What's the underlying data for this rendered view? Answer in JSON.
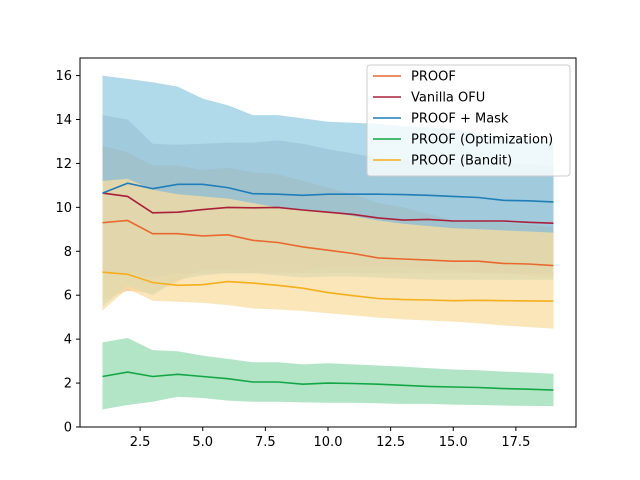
{
  "chart_data": {
    "type": "line",
    "title": "",
    "xlabel": "",
    "ylabel": "",
    "xlim": [
      0.1,
      19.9
    ],
    "ylim": [
      0,
      16.8
    ],
    "xticks": [
      2.5,
      5.0,
      7.5,
      10.0,
      12.5,
      15.0,
      17.5
    ],
    "xtick_labels": [
      "2.5",
      "5.0",
      "7.5",
      "10.0",
      "12.5",
      "15.0",
      "17.5"
    ],
    "yticks": [
      0,
      2,
      4,
      6,
      8,
      10,
      12,
      14,
      16
    ],
    "ytick_labels": [
      "0",
      "2",
      "4",
      "6",
      "8",
      "10",
      "12",
      "14",
      "16"
    ],
    "grid": false,
    "legend_position": "top-right",
    "x": [
      1,
      2,
      3,
      4,
      5,
      6,
      7,
      8,
      9,
      10,
      11,
      12,
      13,
      14,
      15,
      16,
      17,
      18,
      19
    ],
    "series": [
      {
        "name": "PROOF",
        "color": "#E8692F",
        "band_color": "#F0A05A",
        "band_opacity": 0.55,
        "values": [
          9.3,
          9.4,
          8.8,
          8.8,
          8.7,
          8.75,
          8.5,
          8.4,
          8.2,
          8.05,
          7.9,
          7.7,
          7.65,
          7.6,
          7.55,
          7.55,
          7.45,
          7.42,
          7.35
        ],
        "lower": [
          5.8,
          6.2,
          6.1,
          6.6,
          7.2,
          7.2,
          7.1,
          7.1,
          7.1,
          7.3,
          7.3,
          7.3,
          7.3,
          7.2,
          7.2,
          7.0,
          7.0,
          6.9,
          6.8
        ],
        "upper": [
          12.8,
          12.5,
          11.9,
          11.9,
          11.7,
          11.8,
          11.6,
          11.5,
          11.2,
          10.9,
          10.6,
          10.2,
          10.0,
          9.7,
          9.4,
          9.4,
          9.3,
          9.2,
          9.1
        ]
      },
      {
        "name": "Vanilla OFU",
        "color": "#A8203A",
        "band_color": "#8E8A9E",
        "band_opacity": 0.45,
        "values": [
          10.65,
          10.5,
          9.75,
          9.78,
          9.9,
          10.0,
          9.98,
          10.0,
          9.88,
          9.78,
          9.68,
          9.52,
          9.42,
          9.45,
          9.38,
          9.38,
          9.38,
          9.32,
          9.28
        ],
        "lower": [
          7.0,
          7.0,
          6.8,
          7.0,
          7.0,
          7.0,
          7.0,
          7.0,
          7.0,
          7.0,
          7.0,
          7.0,
          7.0,
          7.0,
          7.0,
          7.0,
          7.0,
          7.0,
          7.0
        ],
        "upper": [
          14.2,
          14.0,
          12.9,
          12.85,
          12.9,
          12.95,
          12.95,
          13.05,
          12.9,
          12.65,
          12.45,
          12.25,
          12.15,
          12.1,
          12.0,
          12.0,
          12.0,
          11.95,
          11.9
        ]
      },
      {
        "name": "PROOF + Mask",
        "color": "#1F7EB8",
        "band_color": "#8FCAE0",
        "band_opacity": 0.7,
        "values": [
          10.65,
          11.1,
          10.85,
          11.05,
          11.05,
          10.9,
          10.62,
          10.6,
          10.55,
          10.6,
          10.6,
          10.6,
          10.58,
          10.55,
          10.5,
          10.45,
          10.32,
          10.3,
          10.25
        ],
        "lower": [
          5.5,
          6.4,
          6.0,
          6.7,
          6.9,
          7.0,
          7.0,
          6.9,
          6.8,
          6.85,
          6.85,
          6.8,
          6.75,
          6.7,
          6.7,
          6.7,
          6.7,
          6.7,
          6.7
        ],
        "upper": [
          16.0,
          15.85,
          15.7,
          15.5,
          14.95,
          14.65,
          14.2,
          14.2,
          14.05,
          13.9,
          13.85,
          13.8,
          13.7,
          13.65,
          13.55,
          13.35,
          13.2,
          13.1,
          12.95
        ]
      },
      {
        "name": "PROOF (Optimization)",
        "color": "#14A646",
        "band_color": "#7ED4A0",
        "band_opacity": 0.6,
        "values": [
          2.3,
          2.5,
          2.3,
          2.4,
          2.3,
          2.2,
          2.05,
          2.05,
          1.95,
          2.0,
          1.98,
          1.95,
          1.9,
          1.85,
          1.82,
          1.8,
          1.75,
          1.72,
          1.68
        ],
        "lower": [
          0.8,
          1.0,
          1.15,
          1.38,
          1.32,
          1.2,
          1.15,
          1.15,
          1.12,
          1.1,
          1.1,
          1.08,
          1.05,
          1.05,
          1.02,
          1.0,
          0.98,
          0.96,
          0.95
        ],
        "upper": [
          3.85,
          4.05,
          3.5,
          3.45,
          3.25,
          3.1,
          2.95,
          2.95,
          2.85,
          2.9,
          2.85,
          2.8,
          2.75,
          2.68,
          2.62,
          2.58,
          2.52,
          2.48,
          2.42
        ]
      },
      {
        "name": "PROOF (Bandit)",
        "color": "#F5AE1E",
        "band_color": "#F8DEA0",
        "band_opacity": 0.75,
        "values": [
          7.05,
          6.95,
          6.58,
          6.45,
          6.48,
          6.62,
          6.55,
          6.45,
          6.32,
          6.12,
          5.98,
          5.85,
          5.8,
          5.78,
          5.75,
          5.77,
          5.75,
          5.74,
          5.73
        ],
        "lower": [
          5.3,
          6.3,
          5.75,
          5.7,
          5.65,
          5.55,
          5.4,
          5.35,
          5.28,
          5.18,
          5.08,
          4.98,
          4.9,
          4.85,
          4.8,
          4.72,
          4.62,
          4.55,
          4.48
        ],
        "upper": [
          11.2,
          11.3,
          10.8,
          10.6,
          10.5,
          10.4,
          10.2,
          10.0,
          9.9,
          9.8,
          9.6,
          9.4,
          9.25,
          9.15,
          9.05,
          9.0,
          8.95,
          8.9,
          8.85
        ]
      }
    ]
  }
}
